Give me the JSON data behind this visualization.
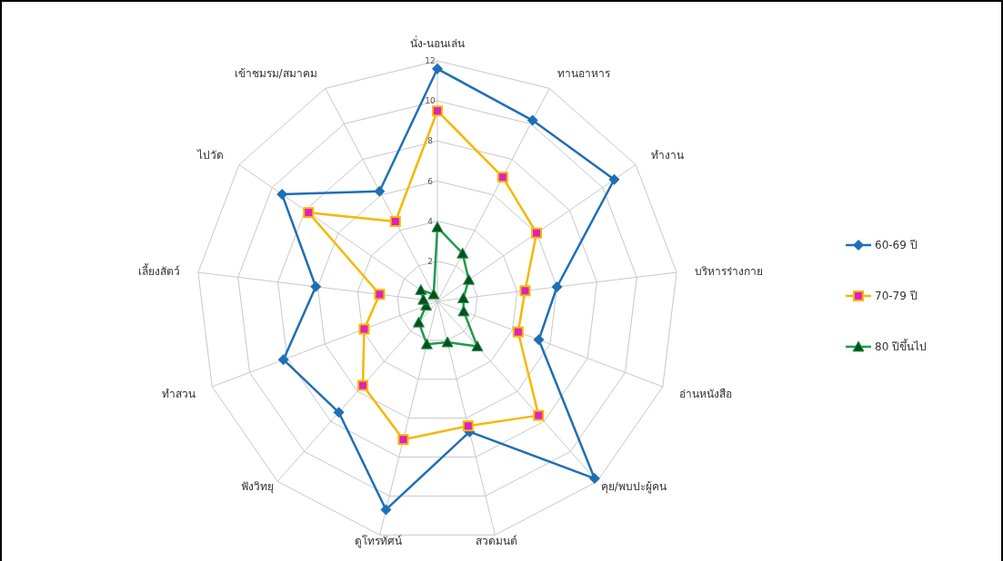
{
  "chart_data": {
    "type": "radar",
    "categories": [
      "นั่ง-นอนเล่น",
      "ทานอาหาร",
      "ทำงาน",
      "บริหารร่างกาย",
      "อ่านหนังสือ",
      "คุย/พบปะผู้คน",
      "สวดมนต์",
      "ดูโทรทัศน์",
      "ฟังวิทยุ",
      "ทำสวน",
      "เลี้ยงสัตว์",
      "ไปวัด",
      "เข้าชมรม/สมาคม"
    ],
    "ylim": [
      0,
      12
    ],
    "yticks": [
      2,
      4,
      6,
      8,
      10,
      12
    ],
    "grid": true,
    "legend": "right",
    "series": [
      {
        "name": "60-69 ปี",
        "color": "#1f6fb4",
        "marker": "diamond",
        "values": [
          11.6,
          10.2,
          10.7,
          6.0,
          5.4,
          11.8,
          6.7,
          10.7,
          7.4,
          8.2,
          6.1,
          9.4,
          6.2
        ]
      },
      {
        "name": "70-79 ปี",
        "color": "#f5b800",
        "marker": "square",
        "values": [
          9.5,
          7.0,
          6.0,
          4.4,
          4.3,
          7.6,
          6.4,
          7.1,
          5.6,
          3.9,
          2.9,
          7.8,
          4.5
        ]
      },
      {
        "name": "80 ปีขึ้นไป",
        "color": "#1e9b4b",
        "marker": "triangle",
        "values": [
          3.7,
          2.7,
          1.9,
          1.3,
          1.4,
          3.0,
          2.1,
          2.2,
          1.4,
          0.6,
          0.7,
          1.0,
          0.4
        ]
      }
    ]
  }
}
